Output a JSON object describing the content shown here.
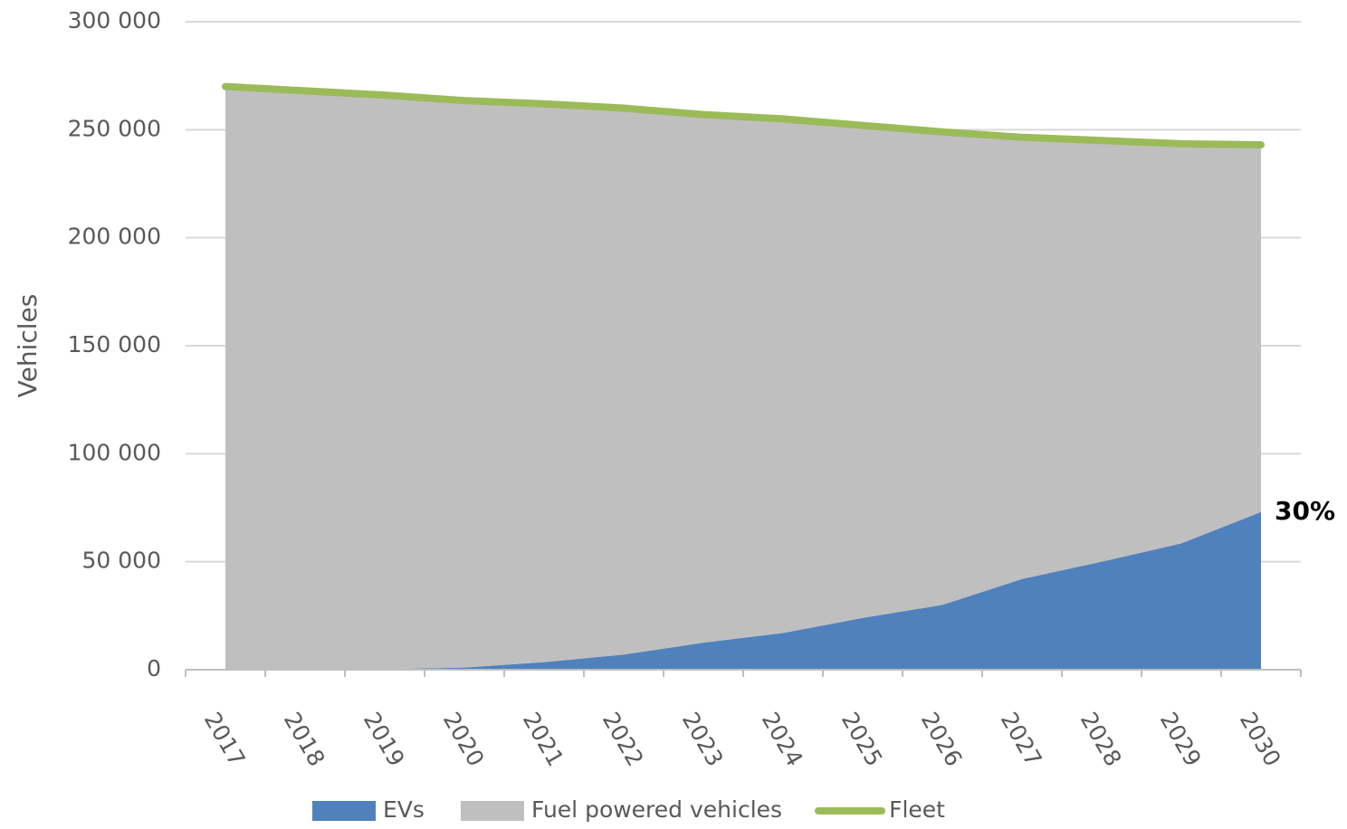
{
  "chart_data": {
    "type": "stacked-area-line",
    "y_label": "Vehicles",
    "categories": [
      "2017",
      "2018",
      "2019",
      "2020",
      "2021",
      "2022",
      "2023",
      "2024",
      "2025",
      "2026",
      "2027",
      "2028",
      "2029",
      "2030"
    ],
    "series": [
      {
        "name": "EVs",
        "kind": "area",
        "color": "#4f81bd",
        "values": [
          0,
          0,
          300,
          1000,
          3500,
          7000,
          12500,
          17000,
          24000,
          30000,
          42000,
          50000,
          58500,
          73000
        ]
      },
      {
        "name": "Fuel powered vehicles",
        "kind": "area",
        "color": "#bfbfbf",
        "values": [
          270000,
          268000,
          265700,
          262500,
          258500,
          253000,
          244500,
          238000,
          228000,
          219000,
          204500,
          195000,
          185000,
          170000
        ]
      },
      {
        "name": "Fleet",
        "kind": "line",
        "color": "#9bbb59",
        "values": [
          270000,
          268000,
          266000,
          263500,
          262000,
          260000,
          257000,
          255000,
          252000,
          249000,
          246500,
          245000,
          243500,
          243000
        ]
      }
    ],
    "annotation": "30%",
    "ylim": [
      0,
      300000
    ],
    "yticks": [
      {
        "value": 0,
        "label": "0"
      },
      {
        "value": 50000,
        "label": "50 000"
      },
      {
        "value": 100000,
        "label": "100 000"
      },
      {
        "value": 150000,
        "label": "150 000"
      },
      {
        "value": 200000,
        "label": "200 000"
      },
      {
        "value": 250000,
        "label": "250 000"
      },
      {
        "value": 300000,
        "label": "300 000"
      }
    ],
    "grid": true
  }
}
